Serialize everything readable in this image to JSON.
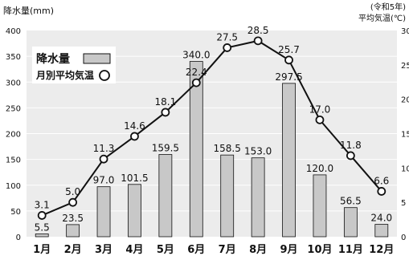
{
  "chart_data": {
    "type": "bar+line",
    "categories": [
      "1月",
      "2月",
      "3月",
      "4月",
      "5月",
      "6月",
      "7月",
      "8月",
      "9月",
      "10月",
      "11月",
      "12月"
    ],
    "series": [
      {
        "name": "降水量",
        "type": "bar",
        "axis": "left",
        "values": [
          5.5,
          23.5,
          97.0,
          101.5,
          159.5,
          340.0,
          158.5,
          153.0,
          297.5,
          120.0,
          56.5,
          24.0
        ],
        "labels": [
          "5.5",
          "23.5",
          "97.0",
          "101.5",
          "159.5",
          "340.0",
          "158.5",
          "153.0",
          "297.5",
          "120.0",
          "56.5",
          "24.0"
        ]
      },
      {
        "name": "月別平均気温",
        "type": "line",
        "axis": "right",
        "values": [
          3.1,
          5.0,
          11.3,
          14.6,
          18.1,
          22.4,
          27.5,
          28.5,
          25.7,
          17.0,
          11.8,
          6.6
        ],
        "labels": [
          "3.1",
          "5.0",
          "11.3",
          "14.6",
          "18.1",
          "22.4",
          "27.5",
          "28.5",
          "25.7",
          "17.0",
          "11.8",
          "6.6"
        ]
      }
    ],
    "ylabel": "降水量(mm)",
    "ylabel_right": "平均気温(℃)",
    "note_right": "(令和5年)",
    "ylim": [
      0,
      400
    ],
    "ylim_right": [
      0,
      30
    ],
    "yticks": [
      "0",
      "50",
      "100",
      "150",
      "200",
      "250",
      "300",
      "350",
      "400"
    ],
    "yticks_right": [
      "0",
      "5",
      "10",
      "15",
      "20",
      "25",
      "30"
    ],
    "grid": true,
    "legend": "top-left"
  },
  "colors": {
    "plot_background": "#ececec",
    "grid": "#ffffff",
    "bar_fill": "#c8c8c8",
    "bar_stroke": "#111111",
    "line": "#111111",
    "marker_fill": "#ffffff"
  }
}
